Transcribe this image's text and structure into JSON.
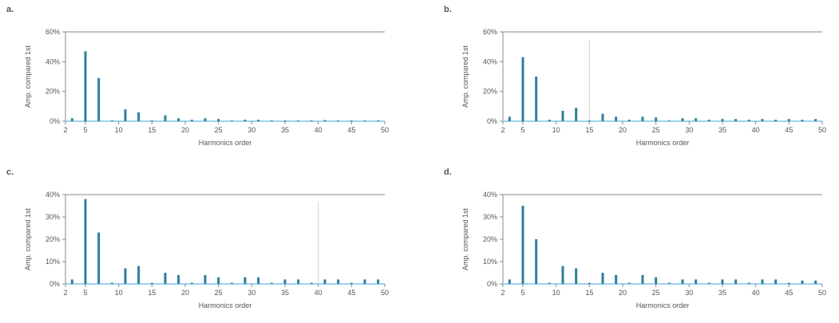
{
  "colors": {
    "bar": "#2f7f9a",
    "baseline": "#9fd3ee",
    "axis": "#888888",
    "marker": "#cfcfcf"
  },
  "chart_data": [
    {
      "label": "a.",
      "type": "bar",
      "xlabel": "Harmonics order",
      "ylabel": "Amp. compared 1st",
      "xlim": [
        2,
        50
      ],
      "xticks": [
        2,
        5,
        10,
        15,
        20,
        25,
        30,
        35,
        40,
        45,
        50
      ],
      "ylim": [
        0,
        60
      ],
      "yticks": [
        0,
        20,
        40,
        60
      ],
      "ytick_labels": [
        "0%",
        "20%",
        "40%",
        "60%"
      ],
      "x": [
        3,
        5,
        7,
        9,
        11,
        13,
        15,
        17,
        19,
        21,
        23,
        25,
        27,
        29,
        31,
        33,
        35,
        37,
        39,
        41,
        43,
        45,
        47,
        49
      ],
      "values": [
        2,
        47,
        29,
        0.5,
        8,
        6,
        0.5,
        4,
        2,
        1,
        2,
        1.5,
        0.5,
        1,
        1,
        0.5,
        0.5,
        0.5,
        0.5,
        0.8,
        0.5,
        0.5,
        0.5,
        0.5
      ]
    },
    {
      "label": "b.",
      "type": "bar",
      "xlabel": "Harmonics order",
      "ylabel": "Amp. compared 1st",
      "xlim": [
        2,
        50
      ],
      "xticks": [
        2,
        5,
        10,
        15,
        20,
        25,
        30,
        35,
        40,
        45,
        50
      ],
      "ylim": [
        0,
        60
      ],
      "yticks": [
        0,
        20,
        40,
        60
      ],
      "ytick_labels": [
        "0%",
        "20%",
        "40%",
        "60%"
      ],
      "marker_x": 15,
      "x": [
        3,
        5,
        7,
        9,
        11,
        13,
        15,
        17,
        19,
        21,
        23,
        25,
        27,
        29,
        31,
        33,
        35,
        37,
        39,
        41,
        43,
        45,
        47,
        49
      ],
      "values": [
        3,
        43,
        30,
        1,
        7,
        9,
        0.5,
        5,
        3,
        1,
        3,
        2.5,
        0.5,
        2,
        2,
        1,
        1.5,
        1.5,
        1,
        1.5,
        1,
        1.5,
        1,
        1.5
      ]
    },
    {
      "label": "c.",
      "type": "bar",
      "xlabel": "Harmonics order",
      "ylabel": "Amp. compared 1st",
      "xlim": [
        2,
        50
      ],
      "xticks": [
        2,
        5,
        10,
        15,
        20,
        25,
        30,
        35,
        40,
        45,
        50
      ],
      "ylim": [
        0,
        40
      ],
      "yticks": [
        0,
        10,
        20,
        30,
        40
      ],
      "ytick_labels": [
        "0%",
        "10%",
        "20%",
        "30%",
        "40%"
      ],
      "marker_x": 40,
      "x": [
        3,
        5,
        7,
        9,
        11,
        13,
        15,
        17,
        19,
        21,
        23,
        25,
        27,
        29,
        31,
        33,
        35,
        37,
        39,
        41,
        43,
        45,
        47,
        49
      ],
      "values": [
        2,
        38,
        23,
        0.5,
        7,
        8,
        0.5,
        5,
        4,
        0.5,
        4,
        3,
        0.5,
        3,
        3,
        0.5,
        2,
        2,
        0.5,
        2,
        2,
        0.5,
        2,
        2
      ]
    },
    {
      "label": "d.",
      "type": "bar",
      "xlabel": "Harmonics order",
      "ylabel": "Amp. compared 1st",
      "xlim": [
        2,
        50
      ],
      "xticks": [
        2,
        5,
        10,
        15,
        20,
        25,
        30,
        35,
        40,
        45,
        50
      ],
      "ylim": [
        0,
        40
      ],
      "yticks": [
        0,
        10,
        20,
        30,
        40
      ],
      "ytick_labels": [
        "0%",
        "10%",
        "20%",
        "30%",
        "40%"
      ],
      "x": [
        3,
        5,
        7,
        9,
        11,
        13,
        15,
        17,
        19,
        21,
        23,
        25,
        27,
        29,
        31,
        33,
        35,
        37,
        39,
        41,
        43,
        45,
        47,
        49
      ],
      "values": [
        2,
        35,
        20,
        0.5,
        8,
        7,
        0.5,
        5,
        4,
        0.5,
        4,
        3,
        0.5,
        2,
        2,
        0.5,
        2,
        2,
        0.5,
        2,
        2,
        0.5,
        1.5,
        1.5
      ]
    }
  ]
}
